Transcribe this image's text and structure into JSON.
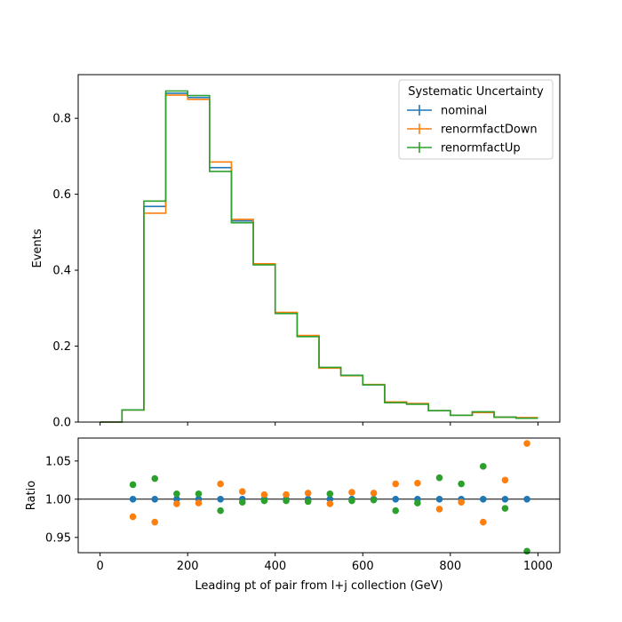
{
  "chart_data": [
    {
      "type": "step",
      "ylabel": "Events",
      "xlim": [
        -50,
        1050
      ],
      "ylim": [
        0,
        0.915
      ],
      "yticks": [
        0.0,
        0.2,
        0.4,
        0.6,
        0.8
      ],
      "ytick_labels": [
        "0.0",
        "0.2",
        "0.4",
        "0.6",
        "0.8"
      ],
      "xticks": [
        0,
        200,
        400,
        600,
        800,
        1000
      ],
      "bin_edges": [
        0,
        50,
        100,
        150,
        200,
        250,
        300,
        350,
        400,
        450,
        500,
        550,
        600,
        650,
        700,
        750,
        800,
        850,
        900,
        950,
        1000
      ],
      "legend": {
        "title": "Systematic Uncertainty",
        "placement": "top-right"
      },
      "series": [
        {
          "name": "nominal",
          "color": "#1f77b4",
          "values": [
            0.0,
            0.032,
            0.568,
            0.866,
            0.855,
            0.67,
            0.53,
            0.415,
            0.287,
            0.226,
            0.143,
            0.123,
            0.098,
            0.052,
            0.048,
            0.03,
            0.018,
            0.026,
            0.013,
            0.011
          ]
        },
        {
          "name": "renormfactDown",
          "color": "#ff7f0e",
          "values": [
            0.0,
            0.032,
            0.55,
            0.861,
            0.85,
            0.685,
            0.534,
            0.417,
            0.289,
            0.228,
            0.142,
            0.122,
            0.099,
            0.053,
            0.049,
            0.03,
            0.018,
            0.025,
            0.013,
            0.012
          ]
        },
        {
          "name": "renormfactUp",
          "color": "#2ca02c",
          "values": [
            0.0,
            0.032,
            0.582,
            0.872,
            0.86,
            0.66,
            0.525,
            0.414,
            0.286,
            0.225,
            0.144,
            0.123,
            0.098,
            0.051,
            0.047,
            0.03,
            0.018,
            0.027,
            0.013,
            0.01
          ]
        }
      ]
    },
    {
      "type": "scatter",
      "xlabel": "Leading pt of pair from l+j collection (GeV)",
      "ylabel": "Ratio",
      "xlim": [
        -50,
        1050
      ],
      "ylim": [
        0.93,
        1.08
      ],
      "yticks": [
        0.95,
        1.0,
        1.05
      ],
      "ytick_labels": [
        "0.95",
        "1.00",
        "1.05"
      ],
      "xticks": [
        0,
        200,
        400,
        600,
        800,
        1000
      ],
      "xtick_labels": [
        "0",
        "200",
        "400",
        "600",
        "800",
        "1000"
      ],
      "reference_line": 1.0,
      "x": [
        75,
        125,
        175,
        225,
        275,
        325,
        375,
        425,
        475,
        525,
        575,
        625,
        675,
        725,
        775,
        825,
        875,
        925,
        975
      ],
      "series": [
        {
          "name": "nominal",
          "color": "#1f77b4",
          "values": [
            1.0,
            1.0,
            1.0,
            1.0,
            1.0,
            1.0,
            1.0,
            1.0,
            1.0,
            1.0,
            1.0,
            1.0,
            1.0,
            1.0,
            1.0,
            1.0,
            1.0,
            1.0,
            1.0
          ]
        },
        {
          "name": "renormfactDown",
          "color": "#ff7f0e",
          "values": [
            0.977,
            0.97,
            0.994,
            0.995,
            1.02,
            1.01,
            1.006,
            1.006,
            1.008,
            0.994,
            1.009,
            1.008,
            1.02,
            1.021,
            0.987,
            0.996,
            0.97,
            1.025,
            1.073
          ]
        },
        {
          "name": "renormfactUp",
          "color": "#2ca02c",
          "values": [
            1.019,
            1.027,
            1.007,
            1.007,
            0.985,
            0.996,
            0.998,
            0.998,
            0.997,
            1.007,
            0.998,
            0.999,
            0.985,
            0.995,
            1.028,
            1.02,
            1.043,
            0.988,
            0.932
          ]
        }
      ]
    }
  ]
}
